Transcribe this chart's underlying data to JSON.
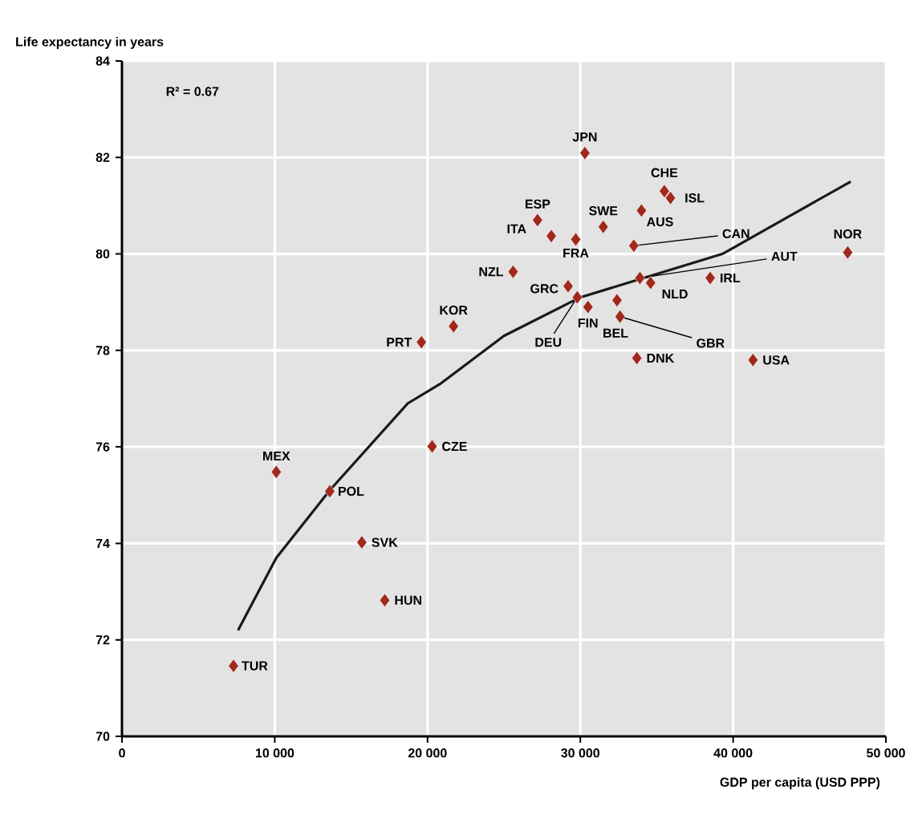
{
  "chart_data": {
    "type": "scatter",
    "xlabel": "GDP per capita (USD PPP)",
    "ylabel": "Life expectancy in years",
    "xlim": [
      0,
      50000
    ],
    "ylim": [
      70,
      84
    ],
    "xticks": [
      0,
      {
        "value": 10000,
        "label": "10 000"
      },
      {
        "value": 20000,
        "label": "20 000"
      },
      {
        "value": 30000,
        "label": "30 000"
      },
      {
        "value": 40000,
        "label": "40 000"
      },
      {
        "value": 50000,
        "label": "50 000"
      }
    ],
    "yticks": [
      70,
      72,
      74,
      76,
      78,
      80,
      82,
      84
    ],
    "grid": true,
    "marker": "diamond",
    "series": [
      {
        "color": "#a0281c",
        "x": [
          7300,
          10100,
          13600,
          15700,
          17200,
          20300,
          19600,
          21700,
          25600,
          27200,
          28100,
          29700,
          29200,
          29800,
          30500,
          30300,
          31500,
          35500,
          35900,
          34000,
          33500,
          33900,
          34600,
          38500,
          47500,
          32400,
          32600,
          33700,
          41300
        ],
        "values": [
          71.46,
          75.48,
          75.08,
          74.02,
          72.82,
          76.01,
          78.17,
          78.5,
          79.63,
          80.7,
          80.37,
          80.3,
          79.33,
          79.1,
          78.9,
          82.09,
          80.56,
          81.3,
          81.16,
          80.9,
          80.17,
          79.5,
          79.4,
          79.5,
          80.03,
          79.04,
          78.7,
          77.84,
          77.8
        ]
      },
      {
        "type": "line",
        "color": "#1a1a1a",
        "marker": "none",
        "x": [
          7600,
          10100,
          13600,
          18700,
          20800,
          25000,
          30000,
          39300,
          47700
        ],
        "values": [
          72.2,
          73.7,
          75.1,
          76.9,
          77.3,
          78.3,
          79.1,
          80.0,
          81.5
        ]
      }
    ],
    "annotations": [
      {
        "text": "TUR",
        "x": 7300,
        "y": 71.46
      },
      {
        "text": "MEX",
        "x": 10100,
        "y": 75.48
      },
      {
        "text": "POL",
        "x": 13600,
        "y": 75.08
      },
      {
        "text": "SVK",
        "x": 15700,
        "y": 74.02
      },
      {
        "text": "HUN",
        "x": 17200,
        "y": 72.82
      },
      {
        "text": "CZE",
        "x": 20300,
        "y": 76.01
      },
      {
        "text": "PRT",
        "x": 19600,
        "y": 78.17
      },
      {
        "text": "KOR",
        "x": 21700,
        "y": 78.5
      },
      {
        "text": "NZL",
        "x": 25600,
        "y": 79.63
      },
      {
        "text": "ESP",
        "x": 27200,
        "y": 80.7
      },
      {
        "text": "ITA",
        "x": 28100,
        "y": 80.37
      },
      {
        "text": "FRA",
        "x": 29700,
        "y": 80.3
      },
      {
        "text": "GRC",
        "x": 29200,
        "y": 79.33
      },
      {
        "text": "DEU",
        "x": 29800,
        "y": 79.1
      },
      {
        "text": "FIN",
        "x": 30500,
        "y": 78.9
      },
      {
        "text": "JPN",
        "x": 30300,
        "y": 82.09
      },
      {
        "text": "SWE",
        "x": 31500,
        "y": 80.56
      },
      {
        "text": "CHE",
        "x": 35500,
        "y": 81.3
      },
      {
        "text": "ISL",
        "x": 35900,
        "y": 81.16
      },
      {
        "text": "AUS",
        "x": 34000,
        "y": 80.9
      },
      {
        "text": "CAN",
        "x": 33500,
        "y": 80.17
      },
      {
        "text": "AUT",
        "x": 33900,
        "y": 79.5
      },
      {
        "text": "NLD",
        "x": 34600,
        "y": 79.4
      },
      {
        "text": "IRL",
        "x": 38500,
        "y": 79.5
      },
      {
        "text": "NOR",
        "x": 47500,
        "y": 80.03
      },
      {
        "text": "BEL",
        "x": 32400,
        "y": 79.04
      },
      {
        "text": "GBR",
        "x": 32600,
        "y": 78.7
      },
      {
        "text": "DNK",
        "x": 33700,
        "y": 77.84
      },
      {
        "text": "USA",
        "x": 41300,
        "y": 77.8
      },
      "R² = 0.67"
    ]
  }
}
